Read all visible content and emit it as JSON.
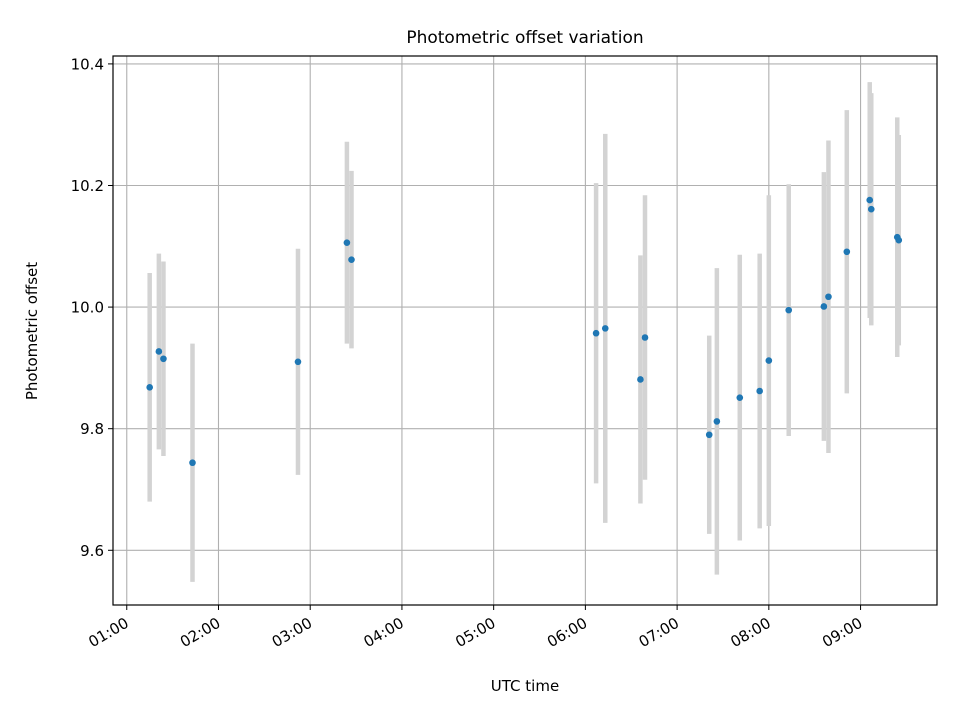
{
  "chart_data": {
    "type": "scatter",
    "title": "Photometric offset variation",
    "xlabel": "UTC time",
    "ylabel": "Photometric offset",
    "xlim": [
      "00:51",
      "09:50"
    ],
    "ylim": [
      9.51,
      10.413
    ],
    "grid": true,
    "x_ticks": [
      "01:00",
      "02:00",
      "03:00",
      "04:00",
      "05:00",
      "06:00",
      "07:00",
      "08:00",
      "09:00"
    ],
    "y_ticks": [
      9.6,
      9.8,
      10.0,
      10.2,
      10.4
    ],
    "y_tick_labels": [
      "9.6",
      "9.8",
      "10.0",
      "10.2",
      "10.4"
    ],
    "colors": {
      "points": "#1f77b4",
      "errorbars": "#d3d3d3",
      "grid": "#b0b0b0"
    },
    "series": [
      {
        "points": [
          {
            "x": "01:15",
            "y": 9.868,
            "err": 0.188
          },
          {
            "x": "01:21",
            "y": 9.927,
            "err": 0.161
          },
          {
            "x": "01:24",
            "y": 9.915,
            "err": 0.16
          },
          {
            "x": "01:43",
            "y": 9.744,
            "err": 0.196
          },
          {
            "x": "02:52",
            "y": 9.91,
            "err": 0.186
          },
          {
            "x": "03:24",
            "y": 10.106,
            "err": 0.166
          },
          {
            "x": "03:27",
            "y": 10.078,
            "err": 0.146
          },
          {
            "x": "06:07",
            "y": 9.957,
            "err": 0.247
          },
          {
            "x": "06:13",
            "y": 9.965,
            "err": 0.32
          },
          {
            "x": "06:36",
            "y": 9.881,
            "err": 0.204
          },
          {
            "x": "06:39",
            "y": 9.95,
            "err": 0.234
          },
          {
            "x": "07:21",
            "y": 9.79,
            "err": 0.163
          },
          {
            "x": "07:26",
            "y": 9.812,
            "err": 0.252
          },
          {
            "x": "07:41",
            "y": 9.851,
            "err": 0.235
          },
          {
            "x": "07:54",
            "y": 9.862,
            "err": 0.226
          },
          {
            "x": "08:00",
            "y": 9.912,
            "err": 0.272
          },
          {
            "x": "08:13",
            "y": 9.995,
            "err": 0.207
          },
          {
            "x": "08:36",
            "y": 10.001,
            "err": 0.221
          },
          {
            "x": "08:39",
            "y": 10.017,
            "err": 0.257
          },
          {
            "x": "08:51",
            "y": 10.091,
            "err": 0.233
          },
          {
            "x": "09:06",
            "y": 10.176,
            "err": 0.194
          },
          {
            "x": "09:07",
            "y": 10.161,
            "err": 0.191
          },
          {
            "x": "09:24",
            "y": 10.115,
            "err": 0.197
          },
          {
            "x": "09:25",
            "y": 10.11,
            "err": 0.173
          }
        ]
      }
    ]
  }
}
